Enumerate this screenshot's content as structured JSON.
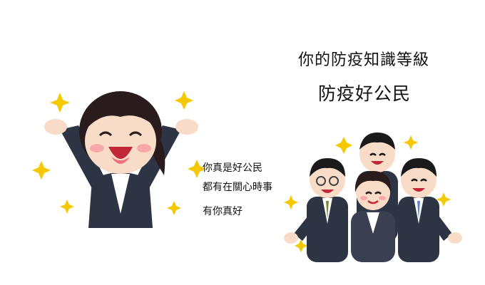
{
  "header": {
    "title": "你的防疫知識等級",
    "level": "防疫好公民"
  },
  "messages": [
    "你真是好公民",
    "都有在關心時事",
    "有你真好"
  ],
  "illustrations": {
    "left": "cheering-woman-illustration",
    "right": "business-group-illustration"
  },
  "colors": {
    "suit": "#2d3444",
    "hair": "#2a1c1c",
    "skin": "#f9dcc8",
    "sparkle": "#f6c800"
  }
}
